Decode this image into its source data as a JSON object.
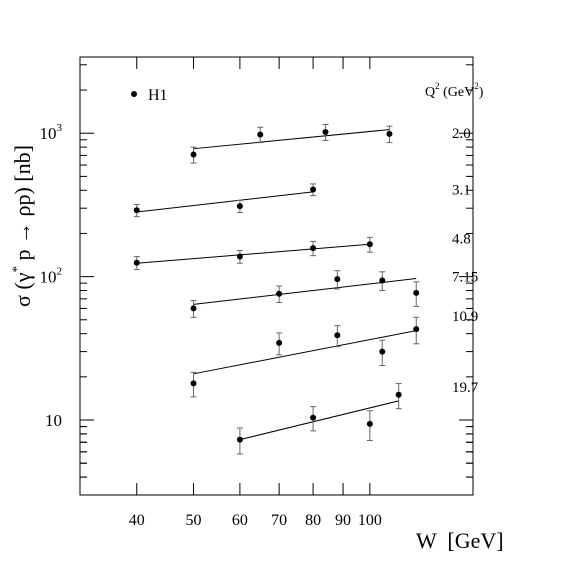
{
  "chart_data": {
    "type": "scatter",
    "xscale": "log",
    "yscale": "log",
    "xlim": [
      32,
      150
    ],
    "ylim": [
      3,
      3400
    ],
    "xlabel": "W  [GeV]",
    "ylabel": "σ (γ* p → ρp) [nb]",
    "ylabel_sup": "*",
    "legend": {
      "marker_label": "H1",
      "header": "Q",
      "header_sup": "2",
      "header_tail": " (GeV",
      "header_sup2": "2",
      "header_end": ")",
      "placement": "top-right"
    },
    "x_ticks": [
      {
        "value": 40,
        "label": "40"
      },
      {
        "value": 50,
        "label": "50"
      },
      {
        "value": 60,
        "label": "60"
      },
      {
        "value": 70,
        "label": "70"
      },
      {
        "value": 80,
        "label": "80"
      },
      {
        "value": 90,
        "label": "90"
      },
      {
        "value": 100,
        "label": "100"
      }
    ],
    "y_ticks": [
      {
        "value": 10,
        "base": "10",
        "exp": ""
      },
      {
        "value": 100,
        "base": "10",
        "exp": "2"
      },
      {
        "value": 1000,
        "base": "10",
        "exp": "3"
      }
    ],
    "series": [
      {
        "name": "2.0",
        "label_y": 1000,
        "points": [
          {
            "x": 50,
            "y": 710,
            "err": 90
          },
          {
            "x": 65,
            "y": 980,
            "err": 120
          },
          {
            "x": 84,
            "y": 1020,
            "err": 130
          },
          {
            "x": 108,
            "y": 990,
            "err": 130
          }
        ],
        "fit": [
          {
            "x": 50,
            "y": 780
          },
          {
            "x": 108,
            "y": 1060
          }
        ]
      },
      {
        "name": "3.1",
        "label_y": 405,
        "points": [
          {
            "x": 40,
            "y": 290,
            "err": 28
          },
          {
            "x": 60,
            "y": 310,
            "err": 30
          },
          {
            "x": 80,
            "y": 405,
            "err": 38
          }
        ],
        "fit": [
          {
            "x": 40,
            "y": 282
          },
          {
            "x": 80,
            "y": 390
          }
        ]
      },
      {
        "name": "4.8",
        "label_y": 185,
        "points": [
          {
            "x": 40,
            "y": 125,
            "err": 13
          },
          {
            "x": 60,
            "y": 138,
            "err": 14
          },
          {
            "x": 80,
            "y": 158,
            "err": 18
          },
          {
            "x": 100,
            "y": 168,
            "err": 20
          }
        ],
        "fit": [
          {
            "x": 40,
            "y": 124
          },
          {
            "x": 100,
            "y": 168
          }
        ]
      },
      {
        "name": "7.15",
        "label_y": 100,
        "points": [
          {
            "x": 50,
            "y": 60,
            "err": 8
          },
          {
            "x": 70,
            "y": 76,
            "err": 10
          },
          {
            "x": 88,
            "y": 96,
            "err": 14
          },
          {
            "x": 105,
            "y": 94,
            "err": 14
          },
          {
            "x": 120,
            "y": 77,
            "err": 15
          }
        ],
        "fit": [
          {
            "x": 50,
            "y": 64
          },
          {
            "x": 120,
            "y": 97
          }
        ]
      },
      {
        "name": "10.9",
        "label_y": 53,
        "points": [
          {
            "x": 50,
            "y": 18,
            "err": 3.5
          },
          {
            "x": 70,
            "y": 34.5,
            "err": 6
          },
          {
            "x": 88,
            "y": 39,
            "err": 6.5
          },
          {
            "x": 105,
            "y": 30,
            "err": 6
          },
          {
            "x": 120,
            "y": 43,
            "err": 9
          }
        ],
        "fit": [
          {
            "x": 50,
            "y": 21
          },
          {
            "x": 120,
            "y": 42
          }
        ]
      },
      {
        "name": "19.7",
        "label_y": 17,
        "points": [
          {
            "x": 60,
            "y": 7.3,
            "err": 1.5
          },
          {
            "x": 80,
            "y": 10.4,
            "err": 2
          },
          {
            "x": 100,
            "y": 9.4,
            "err": 2.2
          },
          {
            "x": 112,
            "y": 15,
            "err": 3
          }
        ],
        "fit": [
          {
            "x": 60,
            "y": 7.3
          },
          {
            "x": 112,
            "y": 13.6
          }
        ]
      }
    ]
  }
}
